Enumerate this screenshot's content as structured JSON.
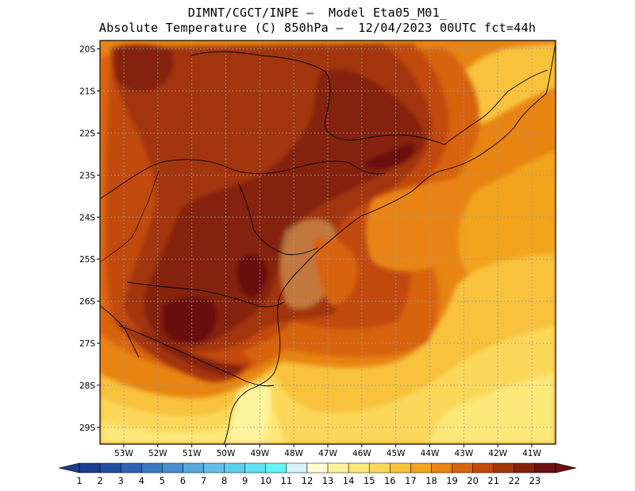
{
  "header": {
    "title_line1": "DIMNT/CGCT/INPE –  Model Eta05_M01_",
    "title_line2": "Absolute Temperature (C) 850hPa –  12/04/2023 00UTC fct=44h"
  },
  "map": {
    "lat_labels": [
      "20S",
      "21S",
      "22S",
      "23S",
      "24S",
      "25S",
      "26S",
      "27S",
      "28S",
      "29S"
    ],
    "lon_labels": [
      "53W",
      "52W",
      "51W",
      "50W",
      "49W",
      "48W",
      "47W",
      "46W",
      "45W",
      "44W",
      "43W",
      "42W",
      "41W"
    ],
    "lat_range": [
      -29.4,
      -19.8
    ],
    "lon_range": [
      -53.7,
      -40.3
    ],
    "grid": "dotted"
  },
  "colorbar": {
    "labels": [
      "1",
      "2",
      "3",
      "4",
      "5",
      "6",
      "7",
      "8",
      "9",
      "10",
      "11",
      "12",
      "13",
      "14",
      "15",
      "16",
      "17",
      "18",
      "19",
      "20",
      "21",
      "22",
      "23"
    ],
    "colors": [
      "#1c3c8c",
      "#234d9e",
      "#2e62b0",
      "#3a78c2",
      "#4a90d0",
      "#58a8dc",
      "#63bfe6",
      "#5ad0ee",
      "#5ee4f4",
      "#66f4f8",
      "#d6f4fa",
      "#fffcd6",
      "#fff49e",
      "#fde87a",
      "#fcd85a",
      "#f8c23c",
      "#f2a41e",
      "#e88412",
      "#d8640c",
      "#c24a08",
      "#a23508",
      "#842208",
      "#6a1010"
    ],
    "extend": "both"
  }
}
